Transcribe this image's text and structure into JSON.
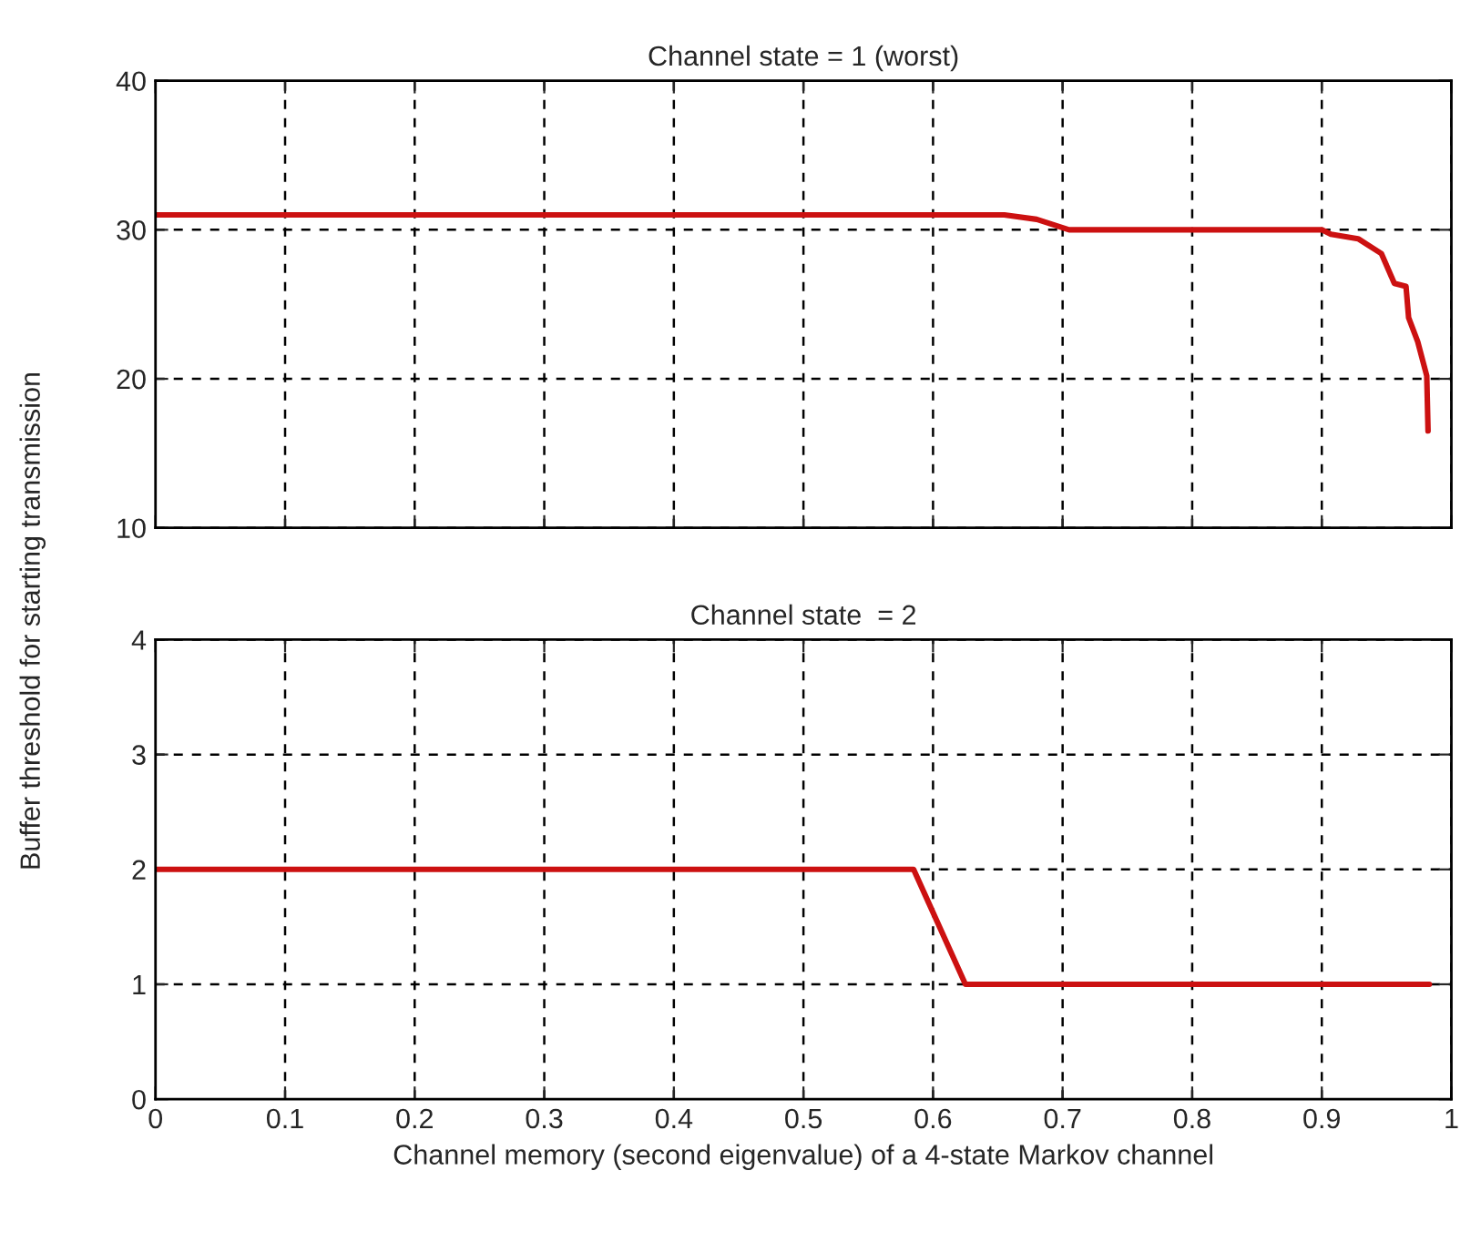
{
  "chart_data": [
    {
      "type": "line",
      "title": "Channel state = 1 (worst)",
      "ylabel": "Buffer threshold for starting transmission",
      "series": [
        {
          "color": "#cc1111",
          "x": [
            0,
            0.655,
            0.68,
            0.705,
            0.9,
            0.907,
            0.928,
            0.946,
            0.956,
            0.965,
            0.967,
            0.974,
            0.981,
            0.982
          ],
          "values": [
            31,
            31,
            30.7,
            30,
            30,
            29.7,
            29.4,
            28.4,
            26.4,
            26.2,
            24.1,
            22.5,
            20.2,
            16.5
          ]
        }
      ],
      "xlim": [
        0,
        1
      ],
      "xticks": [
        0,
        0.1,
        0.2,
        0.3,
        0.4,
        0.5,
        0.6,
        0.7,
        0.8,
        0.9,
        1
      ],
      "ylim": [
        10,
        40
      ],
      "yticks": [
        10,
        20,
        30,
        40
      ],
      "grid": true,
      "tick_labels": "y",
      "line_style": "solid"
    },
    {
      "type": "line",
      "title": "Channel state  = 2",
      "xlabel": "Channel memory (second eigenvalue) of a 4-state Markov channel",
      "series": [
        {
          "color": "#cc1111",
          "x": [
            0,
            0.585,
            0.625,
            0.983
          ],
          "values": [
            2,
            2,
            1,
            1
          ]
        }
      ],
      "xlim": [
        0,
        1
      ],
      "xticks": [
        0,
        0.1,
        0.2,
        0.3,
        0.4,
        0.5,
        0.6,
        0.7,
        0.8,
        0.9,
        1
      ],
      "ylim": [
        0,
        4
      ],
      "yticks": [
        0,
        1,
        2,
        3,
        4
      ],
      "grid": true,
      "line_style": "solid"
    }
  ]
}
